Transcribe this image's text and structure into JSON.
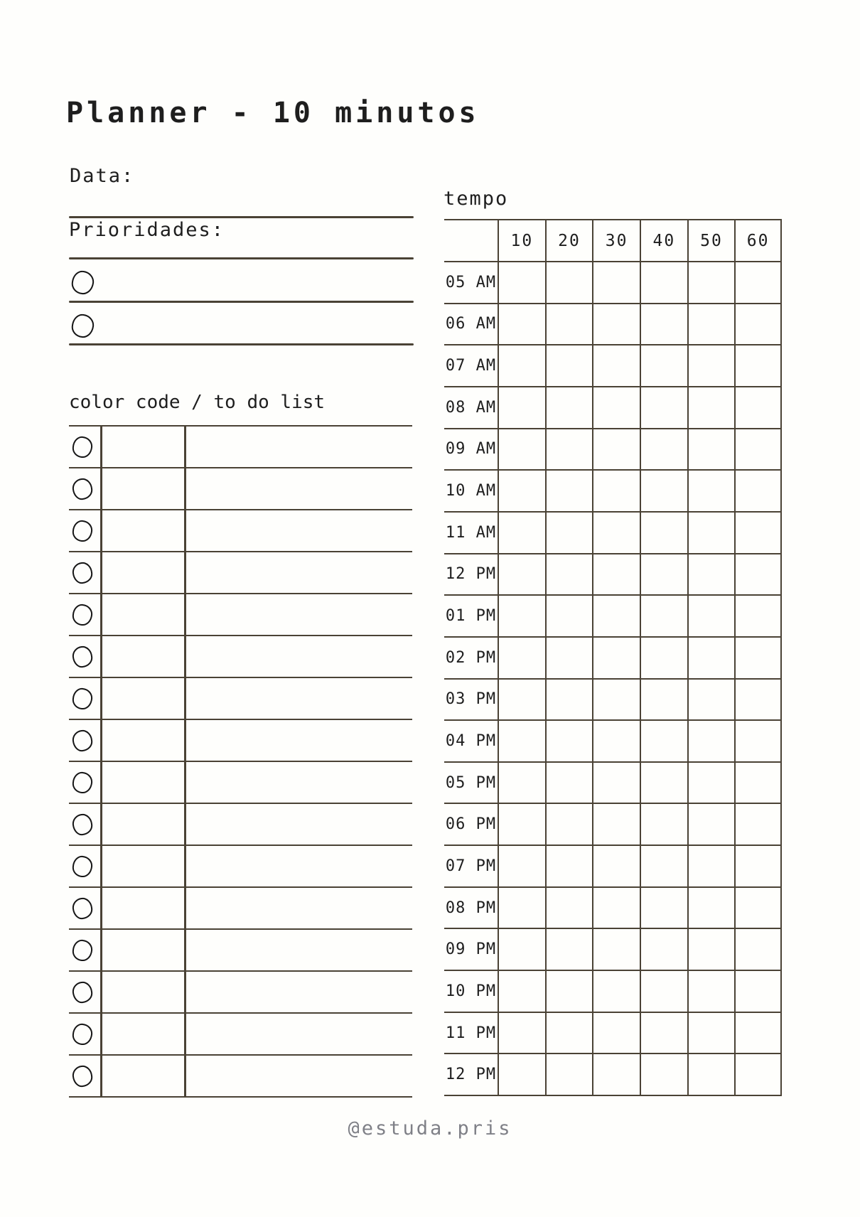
{
  "title": "Planner - 10 minutos",
  "labels": {
    "date": "Data:",
    "priorities": "Prioridades:",
    "color_code": "color code / to do list",
    "tempo": "tempo"
  },
  "priorities": {
    "slots": 2
  },
  "todo": {
    "rows": 16
  },
  "tempo_grid": {
    "minutes": [
      "10",
      "20",
      "30",
      "40",
      "50",
      "60"
    ],
    "hours": [
      "05 AM",
      "06 AM",
      "07 AM",
      "08 AM",
      "09 AM",
      "10 AM",
      "11 AM",
      "12 PM",
      "01 PM",
      "02 PM",
      "03 PM",
      "04 PM",
      "05 PM",
      "06 PM",
      "07 PM",
      "08 PM",
      "09 PM",
      "10 PM",
      "11 PM",
      "12 PM"
    ]
  },
  "footer": {
    "handle": "@estuda.pris"
  },
  "colors": {
    "background": "#fefefc",
    "line": "#4a4235",
    "text": "#1e1e1e",
    "footer_text": "#7f8087"
  }
}
